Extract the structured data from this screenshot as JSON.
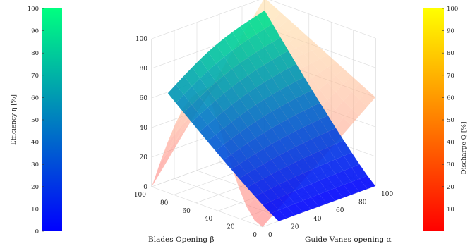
{
  "chart_data": {
    "type": "surface3d",
    "title": "",
    "axes": {
      "x": {
        "label": "Guide Vanes opening α",
        "range": [
          0,
          100
        ],
        "ticks": [
          "0",
          "20",
          "40",
          "60",
          "80",
          "100"
        ]
      },
      "y": {
        "label": "Blades Opening β",
        "range": [
          0,
          100
        ],
        "ticks": [
          "0",
          "20",
          "40",
          "60",
          "80",
          "100"
        ]
      },
      "z": {
        "label": "",
        "range": [
          0,
          100
        ],
        "ticks": [
          "0",
          "20",
          "40",
          "60",
          "80",
          "100"
        ]
      }
    },
    "grid": true,
    "surfaces": [
      {
        "quantity": "Efficiency",
        "colormap": "winter",
        "colormap_colors": [
          "#0000ff",
          "#00ff80"
        ],
        "peak": {
          "alpha": 100,
          "beta": 100,
          "value": 100
        },
        "corner_values": [
          {
            "alpha": 0,
            "beta": 100,
            "value": 55
          },
          {
            "alpha": 100,
            "beta": 100,
            "value": 100
          },
          {
            "alpha": 20,
            "beta": 0,
            "value": 0
          },
          {
            "alpha": 100,
            "beta": 0,
            "value": 0
          }
        ]
      },
      {
        "quantity": "Discharge",
        "colormap": "autumn",
        "colormap_colors": [
          "#ff0000",
          "#ffff00"
        ],
        "peak": {
          "alpha": 100,
          "beta": 100,
          "value": 100
        },
        "ridge_value_at_beta_100": 78
      }
    ],
    "colorbars": [
      {
        "side": "left",
        "label": "Efficiency η [%]",
        "range": [
          0,
          100
        ],
        "ticks": [
          "0",
          "10",
          "20",
          "30",
          "40",
          "50",
          "60",
          "70",
          "80",
          "90",
          "100"
        ],
        "colors": [
          "#0000ff",
          "#00ff80"
        ]
      },
      {
        "side": "right",
        "label": "Discharge Q [%]",
        "range": [
          0,
          100
        ],
        "ticks": [
          "10",
          "20",
          "30",
          "40",
          "50",
          "60",
          "70",
          "80",
          "90",
          "100"
        ],
        "colors": [
          "#ff0000",
          "#ffff00"
        ]
      }
    ]
  }
}
